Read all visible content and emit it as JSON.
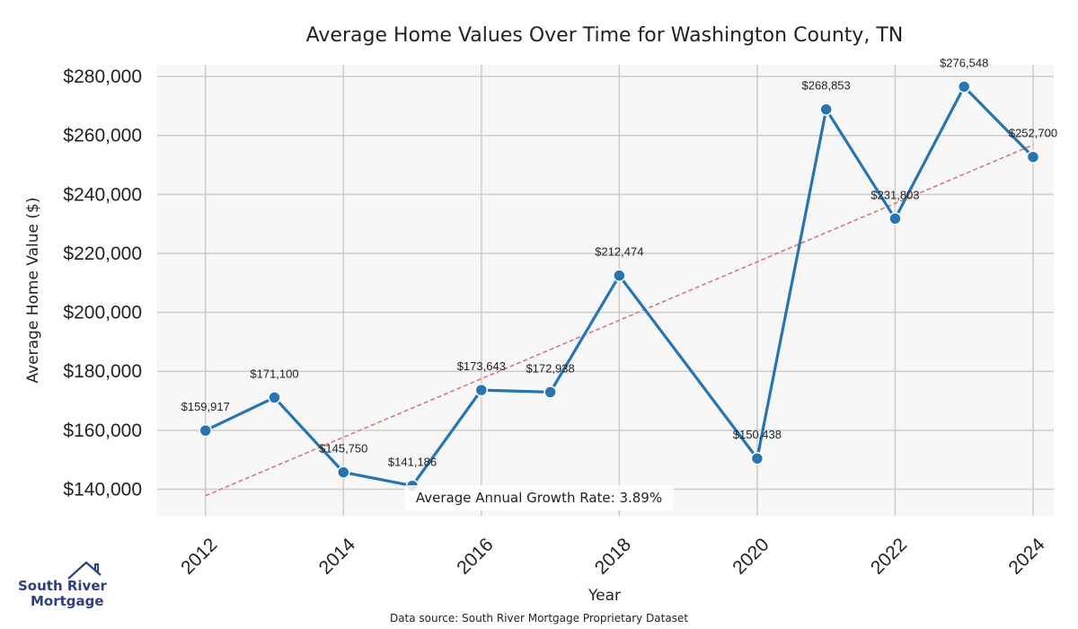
{
  "chart_data": {
    "type": "line",
    "title": "Average Home Values Over Time for Washington County, TN",
    "xlabel": "Year",
    "ylabel": "Average Home Value ($)",
    "x": [
      2012,
      2013,
      2014,
      2015,
      2016,
      2017,
      2018,
      2020,
      2021,
      2022,
      2023,
      2024
    ],
    "series": [
      {
        "name": "Average Home Value",
        "values": [
          159917,
          171100,
          145750,
          141186,
          173643,
          172938,
          212474,
          150438,
          268853,
          231803,
          276548,
          252700
        ],
        "labels": [
          "$159,917",
          "$171,100",
          "$145,750",
          "$141,186",
          "$173,643",
          "$172,938",
          "$212,474",
          "$150,438",
          "$268,853",
          "$231,803",
          "$276,548",
          "$252,700"
        ],
        "color": "#2775b0"
      }
    ],
    "trend": {
      "start_year": 2012,
      "start_value": 137800,
      "end_year": 2024,
      "end_value": 256800,
      "color": "#d47a78"
    },
    "xticks": [
      2012,
      2014,
      2016,
      2018,
      2020,
      2022,
      2024
    ],
    "xtick_labels": [
      "2012",
      "2014",
      "2016",
      "2018",
      "2020",
      "2022",
      "2024"
    ],
    "yticks": [
      140000,
      160000,
      180000,
      200000,
      220000,
      240000,
      260000,
      280000
    ],
    "ytick_labels": [
      "$140,000",
      "$160,000",
      "$180,000",
      "$200,000",
      "$220,000",
      "$240,000",
      "$260,000",
      "$280,000"
    ],
    "xlim": [
      2011.3,
      2024.3
    ],
    "ylim": [
      131000,
      284000
    ],
    "grid": true,
    "annotation": "Average Annual Growth Rate: 3.89%"
  },
  "footer": {
    "source": "Data source: South River Mortgage Proprietary Dataset"
  },
  "logo": {
    "line1": "South River",
    "line2": "Mortgage"
  },
  "colors": {
    "plot_bg": "#f7f7f7",
    "grid": "#cccccc",
    "line": "#2775b0",
    "trend": "#d47a78",
    "logo": "#2f3f7f"
  }
}
